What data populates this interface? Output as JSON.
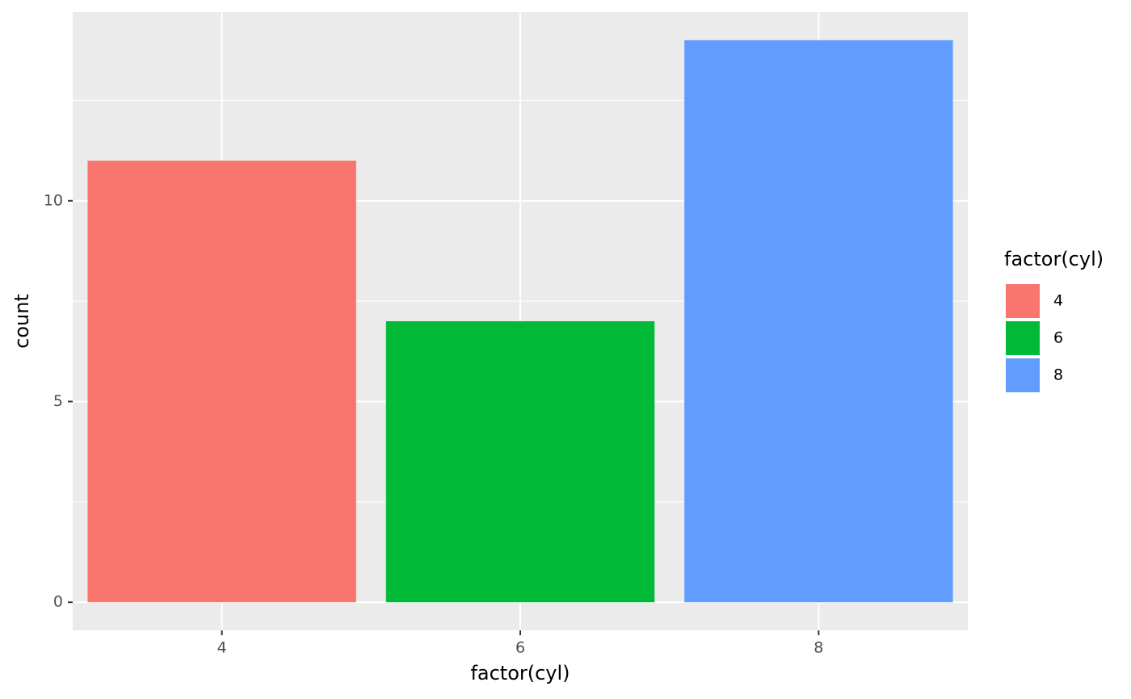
{
  "chart_data": {
    "type": "bar",
    "categories": [
      "4",
      "6",
      "8"
    ],
    "values": [
      11,
      7,
      14
    ],
    "colors": [
      "#f8766d",
      "#00ba38",
      "#619cff"
    ],
    "x_label": "factor(cyl)",
    "y_label": "count",
    "legend_title": "factor(cyl)",
    "ylim": [
      -0.7,
      14.7
    ],
    "yticks": [
      0,
      5,
      10
    ],
    "minor_yticks": [
      2.5,
      7.5,
      12.5
    ],
    "grid": true,
    "legend": "right"
  }
}
